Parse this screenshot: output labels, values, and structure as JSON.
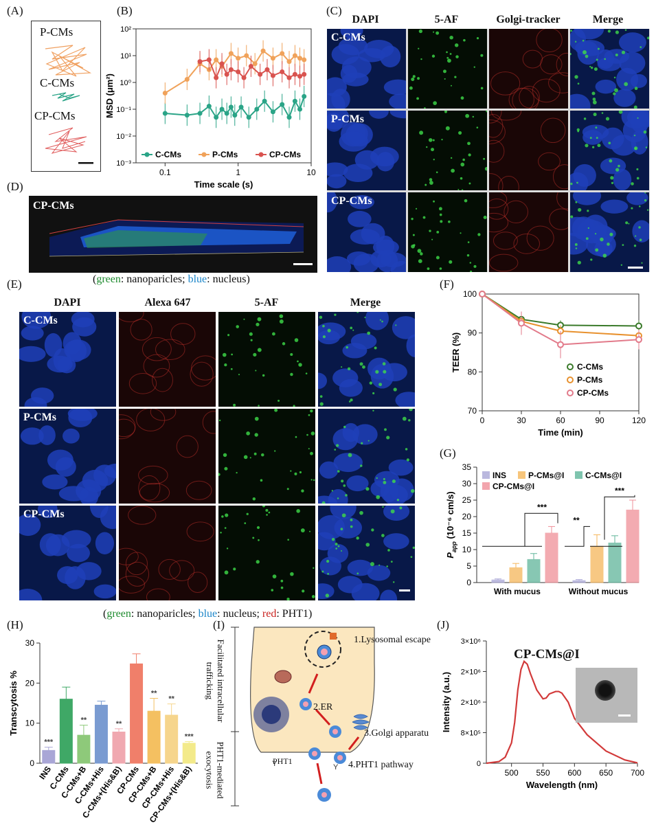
{
  "panels": {
    "A": {
      "letter": "(A)",
      "labels": [
        "P-CMs",
        "C-CMs",
        "CP-CMs"
      ]
    },
    "B": {
      "letter": "(B)"
    },
    "C": {
      "letter": "(C)",
      "columns": [
        "DAPI",
        "5-AF",
        "Golgi-tracker",
        "Merge"
      ],
      "rows": [
        "C-CMs",
        "P-CMs",
        "CP-CMs"
      ]
    },
    "D": {
      "letter": "(D)",
      "label": "CP-CMs",
      "caption": {
        "open": "(",
        "green": "green",
        "mid": ": nanoparicles; ",
        "blue": "blue",
        "end": ": nucleus)"
      }
    },
    "E": {
      "letter": "(E)",
      "columns": [
        "DAPI",
        "Alexa 647",
        "5-AF",
        "Merge"
      ],
      "rows": [
        "C-CMs",
        "P-CMs",
        "CP-CMs"
      ],
      "caption": {
        "open": "(",
        "green": "green",
        "mid1": ": nanoparicles; ",
        "blue": "blue",
        "mid2": ": nucleus; ",
        "red": "red",
        "end": ": PHT1)"
      }
    },
    "F": {
      "letter": "(F)"
    },
    "G": {
      "letter": "(G)"
    },
    "H": {
      "letter": "(H)"
    },
    "I": {
      "letter": "(I)",
      "side_top": "Facilitated intracellular trafficking",
      "side_bottom": "PHT1-mediated exocytosis",
      "steps": [
        "1.Lysosomal escape",
        "2.ER",
        "3.Golgi apparatu",
        "4.PHT1 pathway"
      ],
      "pht1": "PHT1"
    },
    "J": {
      "letter": "(J)",
      "inset_title": "CP-CMs@I"
    }
  },
  "chart_data": [
    {
      "id": "B",
      "type": "line",
      "xlabel": "Time scale (s)",
      "ylabel": "MSD (μm²)",
      "xscale": "log",
      "yscale": "log",
      "xlim": [
        0.04,
        10
      ],
      "ylim": [
        0.001,
        100
      ],
      "xticks": [
        "0.1",
        "1",
        "10"
      ],
      "yticks": [
        "10⁻³",
        "10⁻²",
        "10⁻¹",
        "10⁰",
        "10¹",
        "10²"
      ],
      "legend": [
        "C-CMs",
        "P-CMs",
        "CP-CMs"
      ],
      "series": [
        {
          "name": "C-CMs",
          "color": "#2aa487",
          "x": [
            0.1,
            0.2,
            0.3,
            0.4,
            0.5,
            0.6,
            0.7,
            0.8,
            0.9,
            1.1,
            1.4,
            1.8,
            2.3,
            3,
            4,
            5,
            6,
            7,
            8
          ],
          "y": [
            0.07,
            0.06,
            0.07,
            0.13,
            0.05,
            0.1,
            0.07,
            0.12,
            0.06,
            0.12,
            0.05,
            0.1,
            0.2,
            0.08,
            0.15,
            0.05,
            0.2,
            0.1,
            0.3
          ]
        },
        {
          "name": "P-CMs",
          "color": "#f0a25a",
          "x": [
            0.1,
            0.2,
            0.3,
            0.4,
            0.5,
            0.6,
            0.8,
            1,
            1.3,
            1.7,
            2.2,
            3,
            4,
            5,
            6,
            7,
            8
          ],
          "y": [
            0.4,
            1.3,
            5,
            3,
            7,
            4,
            12,
            8,
            10,
            5,
            15,
            8,
            12,
            6,
            10,
            8,
            7
          ]
        },
        {
          "name": "CP-CMs",
          "color": "#d9534f",
          "x": [
            0.3,
            0.4,
            0.5,
            0.6,
            0.7,
            0.8,
            1,
            1.2,
            1.5,
            2,
            2.5,
            3,
            4,
            5,
            6,
            7,
            8
          ],
          "y": [
            6,
            7,
            1.5,
            5,
            2,
            3,
            2.5,
            1.5,
            4,
            2,
            3,
            1.8,
            2.5,
            1.5,
            2,
            1.7,
            2
          ]
        }
      ]
    },
    {
      "id": "F",
      "type": "line",
      "xlabel": "Time (min)",
      "ylabel": "TEER  (%)",
      "xlim": [
        0,
        120
      ],
      "ylim": [
        70,
        100
      ],
      "xticks": [
        0,
        30,
        60,
        90,
        120
      ],
      "yticks": [
        70,
        80,
        90,
        100
      ],
      "legend": [
        "C-CMs",
        "P-CMs",
        "CP-CMs"
      ],
      "series": [
        {
          "name": "C-CMs",
          "color": "#3a7a2a",
          "x": [
            0,
            30,
            60,
            120
          ],
          "y": [
            100,
            93.5,
            92,
            91.8
          ],
          "err": [
            0,
            1.5,
            1.2,
            1.5
          ]
        },
        {
          "name": "P-CMs",
          "color": "#e8912e",
          "x": [
            0,
            30,
            60,
            120
          ],
          "y": [
            100,
            93,
            90.5,
            89.3
          ],
          "err": [
            0,
            2,
            1.5,
            1.5
          ]
        },
        {
          "name": "CP-CMs",
          "color": "#e27a8a",
          "x": [
            0,
            30,
            60,
            120
          ],
          "y": [
            100,
            92.5,
            87,
            88.3
          ],
          "err": [
            0,
            3,
            3.5,
            2.5
          ]
        }
      ]
    },
    {
      "id": "G",
      "type": "bar",
      "ylabel": "P_app (10⁻⁶ cm/s)",
      "ylabel_main": "P",
      "ylabel_sub": "app",
      "ylabel_rest": " (10⁻⁶ cm/s)",
      "ylim": [
        0,
        35
      ],
      "yticks": [
        0,
        5,
        10,
        15,
        20,
        25,
        30,
        35
      ],
      "categories": [
        "With mucus",
        "Without mucus"
      ],
      "legend": [
        "INS",
        "P-CMs@I",
        "C-CMs@I",
        "CP-CMs@I"
      ],
      "series": [
        {
          "name": "INS",
          "color": "#a9a6d6",
          "values": [
            0.8,
            0.6
          ],
          "err": [
            0.3,
            0.3
          ]
        },
        {
          "name": "P-CMs@I",
          "color": "#f5b65a",
          "values": [
            4.5,
            11
          ],
          "err": [
            1.3,
            3.5
          ]
        },
        {
          "name": "C-CMs@I",
          "color": "#5fb59a",
          "values": [
            7,
            12
          ],
          "err": [
            1.8,
            2.2
          ]
        },
        {
          "name": "CP-CMs@I",
          "color": "#ef8f98",
          "values": [
            15,
            22
          ],
          "err": [
            2,
            3
          ]
        }
      ],
      "annotations": [
        "***",
        "**",
        "***"
      ]
    },
    {
      "id": "H",
      "type": "bar",
      "ylabel": "Transcytosis %",
      "ylim": [
        0,
        30
      ],
      "yticks": [
        0,
        10,
        20,
        30
      ],
      "categories": [
        "INS",
        "C-CMs",
        "C-CMs+B",
        "C-CMs+His",
        "C-CMs+(His&B)",
        "CP-CMs",
        "CP-CMs+B",
        "CP-CMs+His",
        "CP-CMs+(His&B)"
      ],
      "values": [
        3.2,
        16,
        7,
        14.5,
        7.8,
        24.8,
        13,
        12,
        5
      ],
      "err": [
        0.8,
        3,
        2.5,
        1,
        0.8,
        2.5,
        3.2,
        2.8,
        0.4
      ],
      "colors": [
        "#a9a6d6",
        "#3fa866",
        "#8ec97a",
        "#7a9bd1",
        "#f0a8b0",
        "#f07f6a",
        "#f4c061",
        "#f6d58c",
        "#f3ea8a"
      ],
      "annotations": [
        "***",
        "",
        "**",
        "",
        "**",
        "",
        "**",
        "**",
        "***"
      ]
    },
    {
      "id": "J",
      "type": "line",
      "xlabel": "Wavelength (nm)",
      "ylabel": "Intensity (a.u.)",
      "xlim": [
        460,
        700
      ],
      "ylim": [
        0,
        3000000
      ],
      "xticks": [
        500,
        550,
        600,
        650,
        700
      ],
      "yticks": [
        "0",
        "8×10⁵",
        "2×10⁶",
        "2×10⁶",
        "3×10⁶"
      ],
      "series": [
        {
          "name": "",
          "color": "#d23a3a",
          "x": [
            460,
            480,
            490,
            500,
            505,
            510,
            515,
            520,
            525,
            530,
            540,
            550,
            555,
            560,
            570,
            575,
            580,
            590,
            600,
            620,
            650,
            680,
            700
          ],
          "y": [
            0,
            40000,
            150000,
            500000,
            1000000,
            1800000,
            2300000,
            2500000,
            2430000,
            2200000,
            1800000,
            1580000,
            1600000,
            1700000,
            1760000,
            1760000,
            1720000,
            1500000,
            1100000,
            700000,
            300000,
            80000,
            10000
          ]
        }
      ]
    }
  ]
}
